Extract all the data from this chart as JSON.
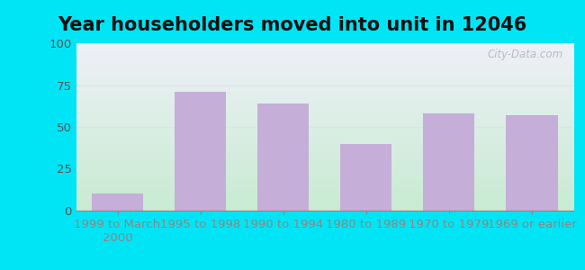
{
  "title": "Year householders moved into unit in 12046",
  "categories": [
    "1999 to March\n2000",
    "1995 to 1998",
    "1990 to 1994",
    "1980 to 1989",
    "1970 to 1979",
    "1969 or earlier"
  ],
  "values": [
    10,
    71,
    64,
    40,
    58,
    57
  ],
  "bar_color": "#c5aed8",
  "ylim": [
    0,
    100
  ],
  "yticks": [
    0,
    25,
    50,
    75,
    100
  ],
  "background_outer": "#00e5f5",
  "background_inner_top": "#eef0f8",
  "background_inner_bottom": "#d8eed8",
  "grid_color": "#e0e0e0",
  "title_fontsize": 15,
  "tick_fontsize": 9.5,
  "watermark": "City-Data.com",
  "bar_width": 0.62
}
